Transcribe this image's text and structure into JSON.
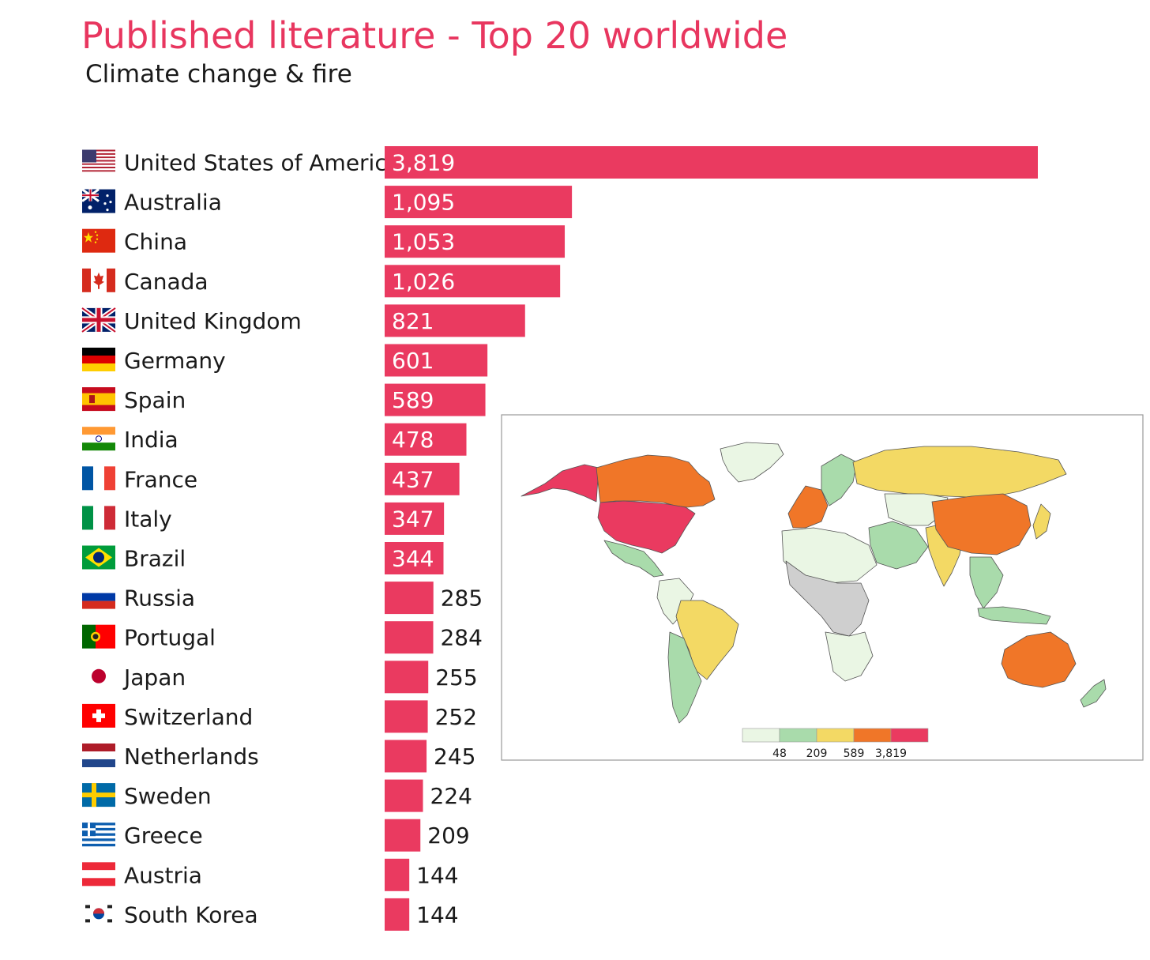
{
  "header": {
    "title": "Published literature - Top 20 worldwide",
    "subtitle": "Climate change & fire"
  },
  "colors": {
    "bar": "#ea3a60",
    "map_scale": [
      "#eaf6e4",
      "#a9dbab",
      "#f3d964",
      "#f07628",
      "#ea3a60"
    ],
    "map_nodata": "#cfcfcf"
  },
  "chart_data": {
    "type": "bar",
    "orientation": "horizontal",
    "categories": [
      "United States of America",
      "Australia",
      "China",
      "Canada",
      "United Kingdom",
      "Germany",
      "Spain",
      "India",
      "France",
      "Italy",
      "Brazil",
      "Russia",
      "Portugal",
      "Japan",
      "Switzerland",
      "Netherlands",
      "Sweden",
      "Greece",
      "Austria",
      "South Korea"
    ],
    "values": [
      3819,
      1095,
      1053,
      1026,
      821,
      601,
      589,
      478,
      437,
      347,
      344,
      285,
      284,
      255,
      252,
      245,
      224,
      209,
      144,
      144
    ],
    "value_labels": [
      "3,819",
      "1,095",
      "1,053",
      "1,026",
      "821",
      "601",
      "589",
      "478",
      "437",
      "347",
      "344",
      "285",
      "284",
      "255",
      "252",
      "245",
      "224",
      "209",
      "144",
      "144"
    ],
    "flag_icons": [
      "usa-flag-icon",
      "australia-flag-icon",
      "china-flag-icon",
      "canada-flag-icon",
      "uk-flag-icon",
      "germany-flag-icon",
      "spain-flag-icon",
      "india-flag-icon",
      "france-flag-icon",
      "italy-flag-icon",
      "brazil-flag-icon",
      "russia-flag-icon",
      "portugal-flag-icon",
      "japan-flag-icon",
      "switzerland-flag-icon",
      "netherlands-flag-icon",
      "sweden-flag-icon",
      "greece-flag-icon",
      "austria-flag-icon",
      "south-korea-flag-icon"
    ],
    "xlim": [
      0,
      3819
    ],
    "grid": false,
    "legend": {
      "placement": "inset map, bottom-center",
      "ticks": [
        "48",
        "209",
        "589",
        "3,819"
      ]
    }
  },
  "map": {
    "icon": "world-map-icon"
  }
}
